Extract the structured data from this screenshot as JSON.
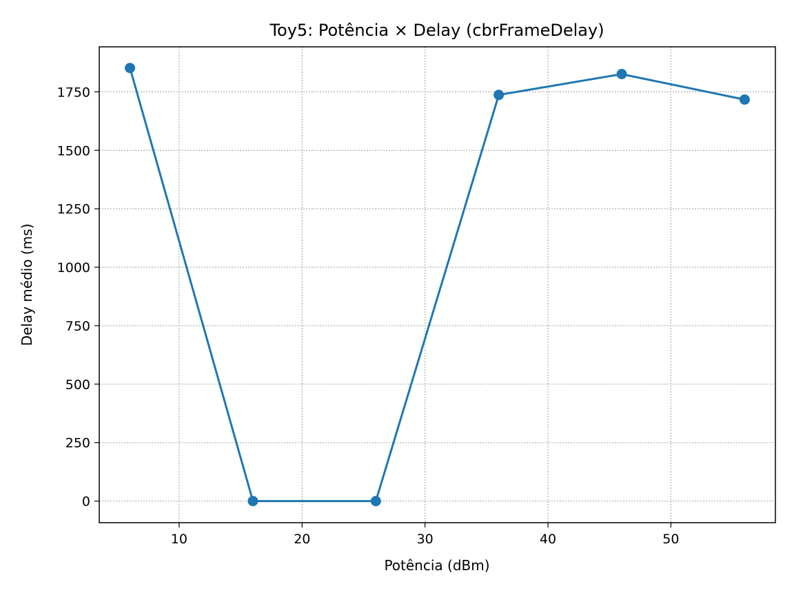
{
  "chart_data": {
    "type": "line",
    "title": "Toy5: Potência × Delay (cbrFrameDelay)",
    "xlabel": "Potência (dBm)",
    "ylabel": "Delay médio (ms)",
    "xlim": [
      3.5,
      58.5
    ],
    "ylim": [
      -92.5,
      1942.5
    ],
    "xticks": [
      10,
      20,
      30,
      40,
      50
    ],
    "yticks": [
      0,
      250,
      500,
      750,
      1000,
      1250,
      1500,
      1750
    ],
    "grid": true,
    "grid_style": "dotted",
    "legend": false,
    "series": [
      {
        "x": [
          6,
          16,
          26,
          36,
          46,
          56
        ],
        "y": [
          1852,
          0,
          0,
          1737,
          1826,
          1717
        ],
        "color": "#1f77b4",
        "marker": "circle"
      }
    ]
  }
}
